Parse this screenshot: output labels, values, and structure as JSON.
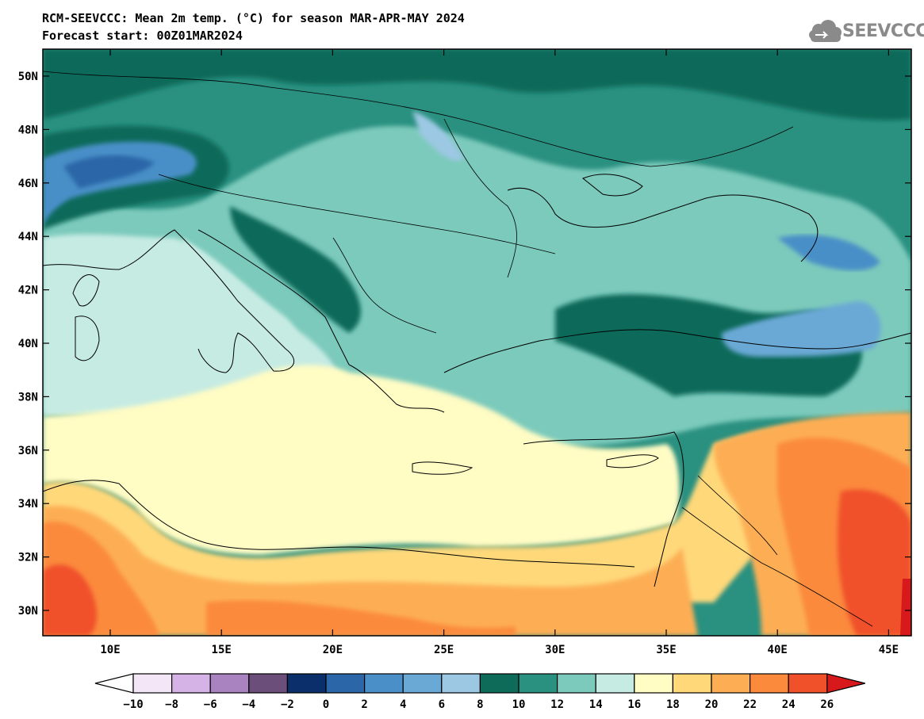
{
  "header": {
    "title": "RCM-SEEVCCC: Mean 2m temp. (°C) for season MAR-APR-MAY 2024",
    "subtitle": "Forecast start: 00Z01MAR2024"
  },
  "logo": {
    "text": "SEEVCCC",
    "icon": "cloud-icon"
  },
  "map": {
    "lat_labels": [
      "50N",
      "48N",
      "46N",
      "44N",
      "42N",
      "40N",
      "38N",
      "36N",
      "34N",
      "32N",
      "30N"
    ],
    "lon_labels": [
      "10E",
      "15E",
      "20E",
      "25E",
      "30E",
      "35E",
      "40E",
      "45E"
    ]
  },
  "colorbar": {
    "labels": [
      "−10",
      "−8",
      "−6",
      "−4",
      "−2",
      "0",
      "2",
      "4",
      "6",
      "8",
      "10",
      "12",
      "14",
      "16",
      "18",
      "20",
      "22",
      "24",
      "26"
    ],
    "under_color": "#ffffff",
    "over_color": "#d7191c",
    "colors": [
      "#f2e6f7",
      "#d6b3e6",
      "#a883bf",
      "#6b4f7a",
      "#0a2f6b",
      "#2b66a8",
      "#4a8fc7",
      "#6aa9d6",
      "#9cc8e3",
      "#0e6b5a",
      "#2a9080",
      "#7ccabc",
      "#c6ebe3",
      "#fffcc4",
      "#ffd87a",
      "#fdae55",
      "#fb8a3c",
      "#f0512a"
    ]
  }
}
